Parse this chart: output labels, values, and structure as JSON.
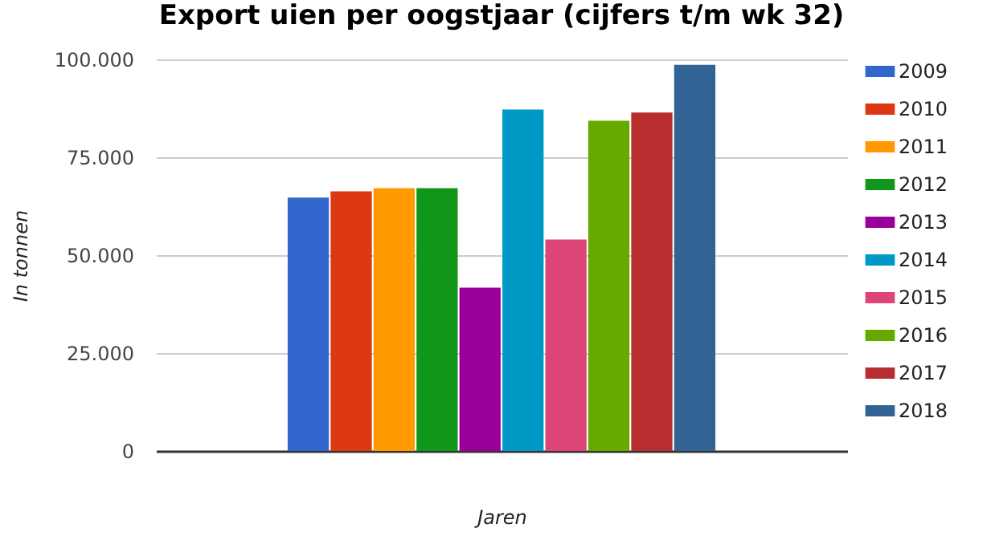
{
  "chart_data": {
    "type": "bar",
    "title": "Export uien per oogstjaar (cijfers t/m wk 32)",
    "xlabel": "Jaren",
    "ylabel": "In tonnen",
    "categories": [
      null
    ],
    "series": [
      {
        "name": "2009",
        "color": "#3366cc",
        "values": [
          64700
        ]
      },
      {
        "name": "2010",
        "color": "#dc3912",
        "values": [
          66300
        ]
      },
      {
        "name": "2011",
        "color": "#ff9900",
        "values": [
          67100
        ]
      },
      {
        "name": "2012",
        "color": "#109618",
        "values": [
          67100
        ]
      },
      {
        "name": "2013",
        "color": "#990099",
        "values": [
          41700
        ]
      },
      {
        "name": "2014",
        "color": "#0099c6",
        "values": [
          87200
        ]
      },
      {
        "name": "2015",
        "color": "#dd4477",
        "values": [
          54000
        ]
      },
      {
        "name": "2016",
        "color": "#66aa00",
        "values": [
          84300
        ]
      },
      {
        "name": "2017",
        "color": "#b82e2e",
        "values": [
          86400
        ]
      },
      {
        "name": "2018",
        "color": "#316395",
        "values": [
          98600
        ]
      }
    ],
    "ylim": [
      0,
      100000
    ],
    "yticks": [
      {
        "value": 0,
        "label": "0"
      },
      {
        "value": 25000,
        "label": "25.000"
      },
      {
        "value": 50000,
        "label": "50.000"
      },
      {
        "value": 75000,
        "label": "75.000"
      },
      {
        "value": 100000,
        "label": "100.000"
      }
    ],
    "grid": "y",
    "legend": "right"
  }
}
